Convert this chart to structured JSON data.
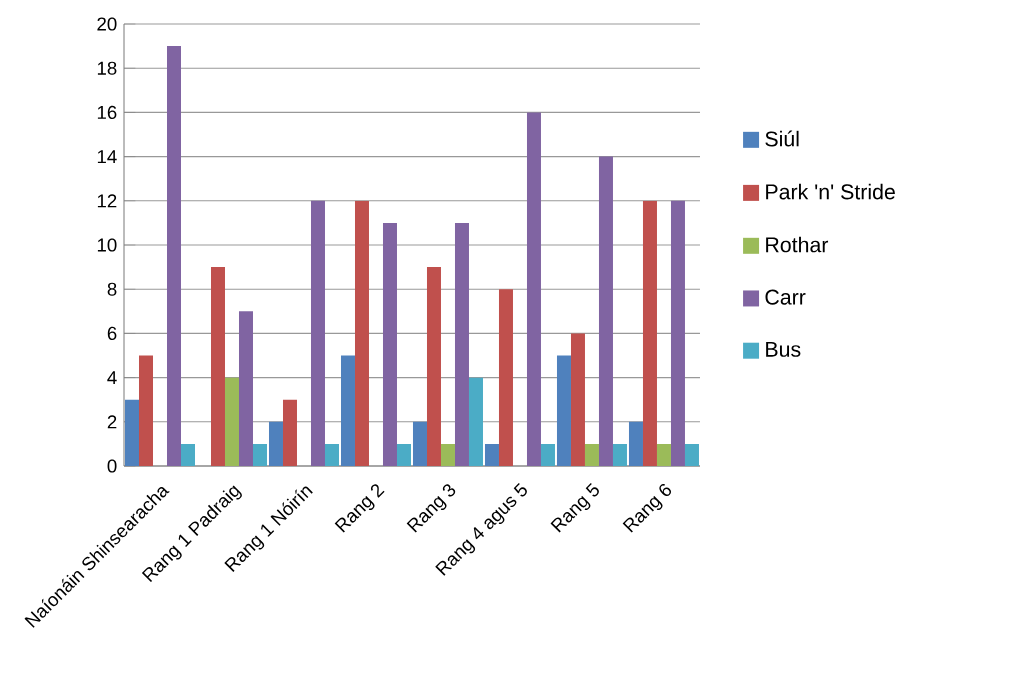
{
  "chart_data": {
    "type": "bar",
    "categories": [
      "Naíonáin Shinsearacha",
      "Rang 1 Padraig",
      "Rang 1 Nóirín",
      "Rang 2",
      "Rang 3",
      "Rang 4 agus 5",
      "Rang 5",
      "Rang 6"
    ],
    "series": [
      {
        "name": "Siúl",
        "color": "#4f81bd",
        "values": [
          3,
          0,
          2,
          5,
          2,
          1,
          5,
          2
        ]
      },
      {
        "name": "Park 'n' Stride",
        "color": "#c0504d",
        "values": [
          5,
          9,
          3,
          12,
          9,
          8,
          6,
          12
        ]
      },
      {
        "name": "Rothar",
        "color": "#9bbb59",
        "values": [
          0,
          4,
          0,
          0,
          1,
          0,
          1,
          1
        ]
      },
      {
        "name": "Carr",
        "color": "#8064a2",
        "values": [
          19,
          7,
          12,
          11,
          11,
          16,
          14,
          12
        ]
      },
      {
        "name": "Bus",
        "color": "#4bacc6",
        "values": [
          1,
          1,
          1,
          1,
          4,
          1,
          1,
          1
        ]
      }
    ],
    "ylim": [
      0,
      20
    ],
    "yticks": [
      0,
      2,
      4,
      6,
      8,
      10,
      12,
      14,
      16,
      18,
      20
    ],
    "grid": "y",
    "legend": "right"
  }
}
